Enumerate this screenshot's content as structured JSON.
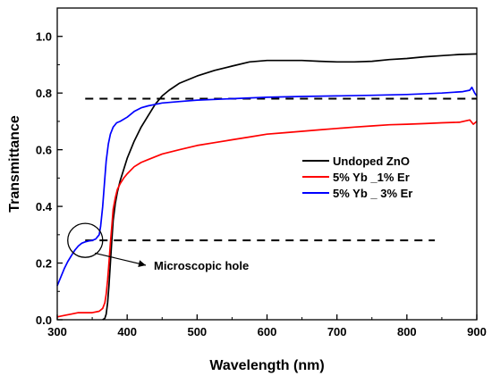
{
  "chart_data": {
    "type": "line",
    "title": "",
    "xlabel": "Wavelength (nm)",
    "ylabel": "Transmittance",
    "xlim": [
      300,
      900
    ],
    "ylim": [
      0.0,
      1.1
    ],
    "xticks": [
      300,
      400,
      500,
      600,
      700,
      800,
      900
    ],
    "yticks": [
      0.0,
      0.2,
      0.4,
      0.6,
      0.8,
      1.0
    ],
    "xtick_labels": [
      "300",
      "400",
      "500",
      "600",
      "700",
      "800",
      "900"
    ],
    "ytick_labels": [
      "0.0",
      "0.2",
      "0.4",
      "0.6",
      "0.8",
      "1.0"
    ],
    "grid": false,
    "legend_position": "right",
    "series": [
      {
        "name": "Undoped ZnO",
        "color": "#000000",
        "x": [
          365,
          368,
          370,
          372,
          374,
          376,
          378,
          380,
          383,
          386,
          390,
          395,
          400,
          410,
          420,
          430,
          440,
          450,
          460,
          475,
          500,
          525,
          550,
          575,
          600,
          625,
          650,
          675,
          700,
          725,
          750,
          775,
          800,
          825,
          850,
          875,
          900
        ],
        "y": [
          0.0,
          0.005,
          0.02,
          0.06,
          0.12,
          0.2,
          0.28,
          0.35,
          0.41,
          0.45,
          0.49,
          0.53,
          0.57,
          0.63,
          0.68,
          0.72,
          0.76,
          0.79,
          0.81,
          0.835,
          0.86,
          0.88,
          0.895,
          0.91,
          0.915,
          0.915,
          0.915,
          0.912,
          0.91,
          0.91,
          0.912,
          0.918,
          0.922,
          0.928,
          0.932,
          0.936,
          0.938
        ]
      },
      {
        "name": "5% Yb _1% Er",
        "color": "#ff0000",
        "x": [
          300,
          310,
          320,
          330,
          340,
          350,
          360,
          365,
          368,
          370,
          372,
          374,
          376,
          378,
          380,
          383,
          386,
          390,
          395,
          400,
          410,
          420,
          430,
          440,
          450,
          475,
          500,
          525,
          550,
          575,
          600,
          625,
          650,
          675,
          700,
          725,
          750,
          775,
          800,
          825,
          850,
          875,
          890,
          895,
          900
        ],
        "y": [
          0.01,
          0.015,
          0.02,
          0.025,
          0.025,
          0.025,
          0.03,
          0.04,
          0.06,
          0.09,
          0.14,
          0.2,
          0.27,
          0.33,
          0.39,
          0.43,
          0.46,
          0.48,
          0.5,
          0.515,
          0.54,
          0.555,
          0.565,
          0.575,
          0.585,
          0.6,
          0.615,
          0.625,
          0.635,
          0.645,
          0.655,
          0.66,
          0.665,
          0.67,
          0.675,
          0.68,
          0.684,
          0.688,
          0.69,
          0.692,
          0.695,
          0.697,
          0.705,
          0.69,
          0.7
        ]
      },
      {
        "name": "5% Yb _ 3% Er",
        "color": "#0000ff",
        "x": [
          300,
          305,
          310,
          315,
          320,
          325,
          330,
          335,
          340,
          345,
          350,
          355,
          360,
          362,
          365,
          368,
          370,
          373,
          376,
          380,
          385,
          390,
          400,
          410,
          420,
          430,
          440,
          450,
          475,
          500,
          550,
          600,
          650,
          700,
          750,
          800,
          850,
          880,
          890,
          893,
          897,
          900
        ],
        "y": [
          0.12,
          0.15,
          0.18,
          0.205,
          0.225,
          0.245,
          0.26,
          0.27,
          0.275,
          0.278,
          0.28,
          0.285,
          0.3,
          0.33,
          0.4,
          0.5,
          0.56,
          0.62,
          0.655,
          0.68,
          0.695,
          0.7,
          0.715,
          0.735,
          0.748,
          0.755,
          0.76,
          0.765,
          0.77,
          0.775,
          0.78,
          0.785,
          0.788,
          0.79,
          0.792,
          0.795,
          0.8,
          0.805,
          0.81,
          0.82,
          0.8,
          0.79
        ]
      }
    ],
    "reference_lines": [
      {
        "y": 0.78,
        "x_start": 340,
        "x_end": 900,
        "style": "dashed"
      },
      {
        "y": 0.28,
        "x_start": 340,
        "x_end": 840,
        "style": "dashed"
      }
    ],
    "annotations": [
      {
        "text": "Microscopic hole",
        "center_x": 340,
        "center_y": 0.28,
        "radius_x": 25,
        "radius_y": 0.06
      }
    ]
  }
}
